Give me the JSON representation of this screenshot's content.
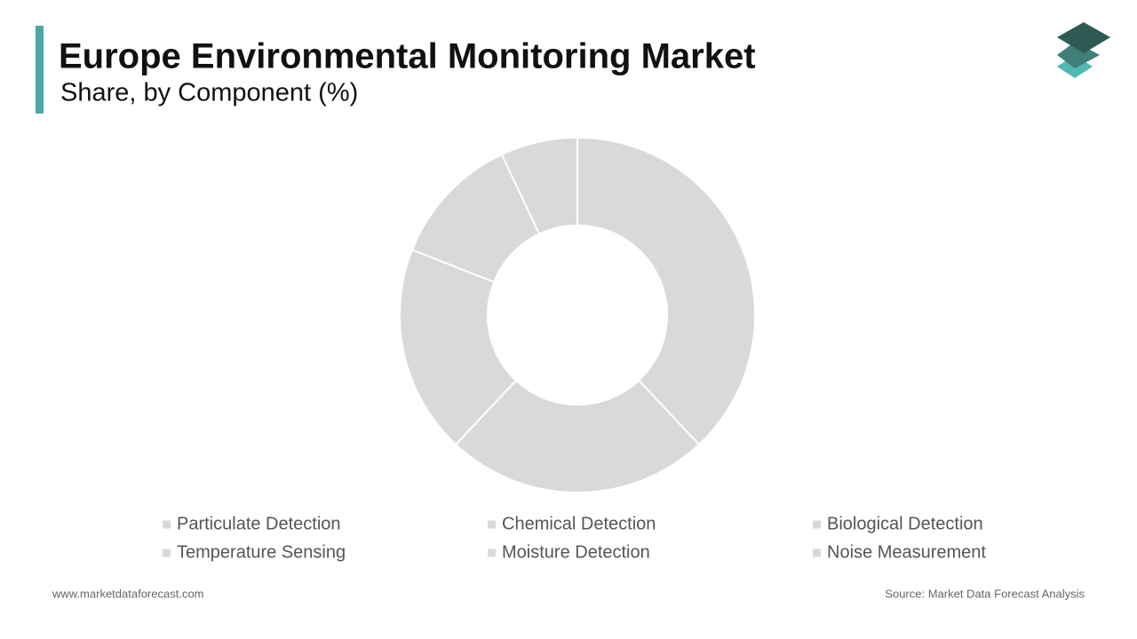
{
  "chart_data": {
    "type": "donut",
    "title": "Europe Environmental Monitoring Market",
    "subtitle": "Share, by Component (%)",
    "categories": [
      "Particulate Detection",
      "Chemical Detection",
      "Biological Detection",
      "Temperature Sensing",
      "Moisture Detection",
      "Noise Measurement"
    ],
    "values": [
      38,
      24,
      19,
      12,
      7,
      0
    ],
    "color": "#d9d9d9",
    "legend": "bottom"
  },
  "footer": {
    "website": "www.marketdataforecast.com",
    "source": "Source: Market Data Forecast Analysis"
  }
}
